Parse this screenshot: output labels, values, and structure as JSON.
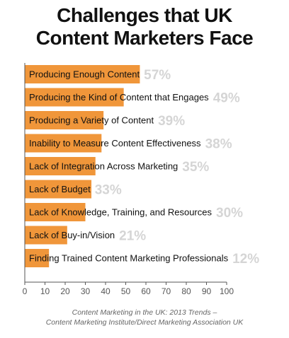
{
  "title_line1": "Challenges that UK",
  "title_line2": "Content Marketers Face",
  "chart_data": {
    "type": "bar",
    "orientation": "horizontal",
    "categories": [
      "Producing Enough Content",
      "Producing the Kind of Content that Engages",
      "Producing a Variety of Content",
      "Inability to Measure Content Effectiveness",
      "Lack of Integration Across Marketing",
      "Lack of Budget",
      "Lack of Knowledge, Training, and Resources",
      "Lack of Buy-in/Vision",
      "Finding Trained Content Marketing Professionals"
    ],
    "values": [
      57,
      49,
      39,
      38,
      35,
      33,
      30,
      21,
      12
    ],
    "value_labels": [
      "57%",
      "49%",
      "39%",
      "38%",
      "35%",
      "33%",
      "30%",
      "21%",
      "12%"
    ],
    "xlim": [
      0,
      100
    ],
    "xticks": [
      0,
      10,
      20,
      30,
      40,
      50,
      60,
      70,
      80,
      90,
      100
    ],
    "bar_color": "#f0963a",
    "label_color": "#d5d5d5"
  },
  "source_line1": "Content Marketing in the UK: 2013 Trends –",
  "source_line2": "Content Marketing Institute/Direct Marketing Association UK"
}
